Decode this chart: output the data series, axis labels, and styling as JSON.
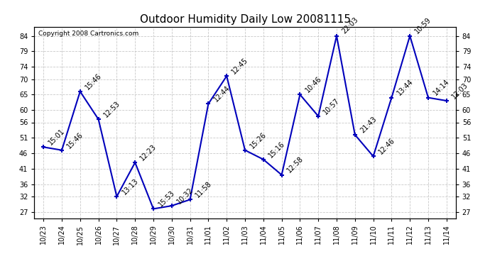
{
  "title": "Outdoor Humidity Daily Low 20081115",
  "copyright": "Copyright 2008 Cartronics.com",
  "x_labels": [
    "10/23",
    "10/24",
    "10/25",
    "10/26",
    "10/27",
    "10/28",
    "10/29",
    "10/30",
    "10/31",
    "11/01",
    "11/02",
    "11/03",
    "11/04",
    "11/05",
    "11/06",
    "11/07",
    "11/08",
    "11/09",
    "11/10",
    "11/11",
    "11/12",
    "11/13",
    "11/14"
  ],
  "y_values": [
    48,
    47,
    66,
    57,
    32,
    43,
    28,
    29,
    31,
    62,
    71,
    47,
    44,
    39,
    65,
    58,
    84,
    52,
    45,
    64,
    84,
    64,
    63
  ],
  "point_labels": [
    "15:01",
    "15:46",
    "15:46",
    "12:53",
    "13:13",
    "12:23",
    "15:53",
    "10:32",
    "11:58",
    "12:44",
    "12:45",
    "15:26",
    "15:16",
    "12:58",
    "10:46",
    "10:57",
    "22:03",
    "21:43",
    "12:46",
    "13:44",
    "10:59",
    "14:14",
    "12:03"
  ],
  "line_color": "#0000bb",
  "marker_color": "#0000bb",
  "bg_color": "#ffffff",
  "grid_color": "#bbbbbb",
  "ylim": [
    25,
    87
  ],
  "yticks": [
    27,
    32,
    36,
    41,
    46,
    51,
    56,
    60,
    65,
    70,
    74,
    79,
    84
  ],
  "title_fontsize": 11,
  "label_fontsize": 7,
  "tick_fontsize": 7,
  "copyright_fontsize": 6.5
}
